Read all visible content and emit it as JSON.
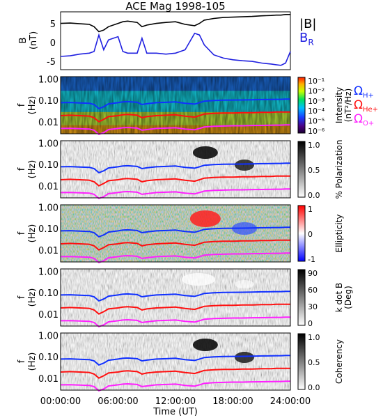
{
  "title": "ACE Mag 1998-105",
  "time_axis": {
    "label": "Time (UT)",
    "ticks": [
      "00:00:00",
      "06:00:00",
      "12:00:00",
      "18:00:00",
      "24:00:00"
    ],
    "range_hours": [
      0,
      24
    ]
  },
  "colors": {
    "bmag": "#000000",
    "br": "#2020e0",
    "h": "#1030ff",
    "he": "#ff1010",
    "o": "#ff20ff"
  },
  "panel_b": {
    "ylabel": "B",
    "yunit": "(nT)",
    "yticks": [
      "5",
      "0",
      "-5"
    ],
    "ylim": [
      -8.5,
      9
    ],
    "legend_bmag": "|B|",
    "legend_br": "B",
    "legend_br_sub": "R"
  },
  "spectro_ylabel": {
    "f": "f",
    "unit": "(Hz)"
  },
  "freq_ticks": [
    "1.00",
    "0.10",
    "0.01"
  ],
  "gyro_legend": [
    {
      "symbol": "Ω",
      "sub": "H+",
      "color": "#1030ff"
    },
    {
      "symbol": "Ω",
      "sub": "He+",
      "color": "#ff1010"
    },
    {
      "symbol": "Ω",
      "sub": "O+",
      "color": "#ff20ff"
    }
  ],
  "panels": [
    {
      "name": "intensity",
      "colorbar_label": "Intensity",
      "colorbar_unit": "(nT²/Hz)",
      "colorbar_ticks": [
        "10⁻¹",
        "10⁻²",
        "10⁻³",
        "10⁻⁴",
        "10⁻⁵",
        "10⁻⁶"
      ]
    },
    {
      "name": "polarization",
      "colorbar_label": "% Polarization",
      "colorbar_unit": "",
      "colorbar_ticks": [
        "1.0",
        "0.5",
        "0.0"
      ]
    },
    {
      "name": "ellipticity",
      "colorbar_label": "Ellipticity",
      "colorbar_unit": "",
      "colorbar_ticks": [
        "1",
        "0",
        "-1"
      ]
    },
    {
      "name": "kdotb",
      "colorbar_label": "k dot B",
      "colorbar_unit": "(Deg)",
      "colorbar_ticks": [
        "90",
        "60",
        "30",
        "0"
      ]
    },
    {
      "name": "coherency",
      "colorbar_label": "Coherency",
      "colorbar_unit": "",
      "colorbar_ticks": [
        "1.0",
        "0.5",
        "0.0"
      ]
    }
  ],
  "chart_data": {
    "type": "line",
    "title": "ACE Mag 1998-105",
    "xlabel": "Time (UT)",
    "x_hours": [
      0,
      1,
      2,
      3,
      3.5,
      4,
      4.5,
      5,
      6,
      6.5,
      7,
      8,
      8.5,
      9,
      10,
      11,
      12,
      13,
      14,
      14.5,
      15,
      16,
      17,
      18,
      19,
      20,
      21,
      22,
      22.5,
      23,
      23.5,
      24
    ],
    "series": [
      {
        "name": "|B|",
        "values": [
          5.5,
          5.6,
          5.4,
          5.2,
          4.5,
          3.0,
          3.5,
          4.5,
          5.5,
          6.0,
          6.2,
          5.8,
          4.5,
          5.0,
          5.5,
          5.8,
          6.0,
          5.2,
          4.8,
          5.5,
          6.5,
          7.0,
          7.3,
          7.4,
          7.5,
          7.6,
          7.8,
          7.9,
          8.0,
          8.0,
          8.2,
          8.2
        ]
      },
      {
        "name": "B_R",
        "values": [
          -4.5,
          -4.3,
          -3.8,
          -3.5,
          -3.0,
          2.0,
          -2.5,
          0.5,
          1.5,
          -3.0,
          -3.5,
          -3.5,
          1.0,
          -3.5,
          -3.5,
          -3.8,
          -3.5,
          -2.5,
          2.5,
          2.0,
          -1.0,
          -4.0,
          -5.0,
          -5.5,
          -5.8,
          -6.0,
          -6.5,
          -6.8,
          -7.0,
          -7.2,
          -6.5,
          -3.0
        ]
      }
    ],
    "gyrofrequency_hz": {
      "H+": [
        0.085,
        0.087,
        0.083,
        0.08,
        0.07,
        0.045,
        0.055,
        0.075,
        0.085,
        0.092,
        0.095,
        0.088,
        0.07,
        0.076,
        0.085,
        0.088,
        0.092,
        0.08,
        0.073,
        0.085,
        0.1,
        0.107,
        0.111,
        0.113,
        0.114,
        0.116,
        0.119,
        0.12,
        0.122,
        0.122,
        0.125,
        0.125
      ],
      "He+": [
        0.021,
        0.022,
        0.021,
        0.02,
        0.017,
        0.011,
        0.014,
        0.019,
        0.021,
        0.023,
        0.024,
        0.022,
        0.017,
        0.019,
        0.021,
        0.022,
        0.023,
        0.02,
        0.018,
        0.021,
        0.025,
        0.027,
        0.028,
        0.028,
        0.029,
        0.029,
        0.03,
        0.03,
        0.031,
        0.031,
        0.031,
        0.031
      ],
      "O+": [
        0.0053,
        0.0054,
        0.0052,
        0.005,
        0.0044,
        0.0028,
        0.0034,
        0.0047,
        0.0053,
        0.0057,
        0.0059,
        0.0055,
        0.0044,
        0.0047,
        0.0053,
        0.0055,
        0.0057,
        0.005,
        0.0046,
        0.0053,
        0.0062,
        0.0067,
        0.0069,
        0.0071,
        0.0071,
        0.0073,
        0.0074,
        0.0075,
        0.0076,
        0.0076,
        0.0078,
        0.0078
      ]
    },
    "freq_range_hz": [
      0.003,
      1.4
    ],
    "grid": false
  }
}
